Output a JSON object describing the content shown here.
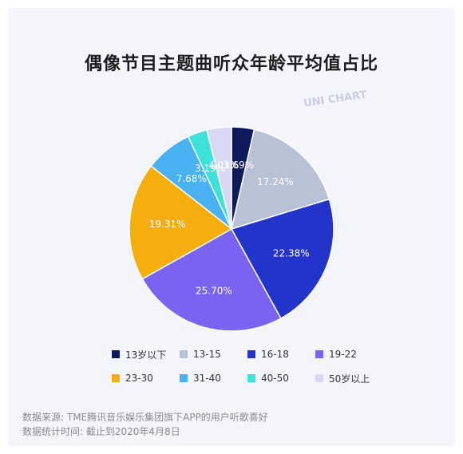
{
  "title": "偶像节目主题曲听众年龄平均值占比",
  "watermark": "UNI CHART",
  "chart_data": {
    "type": "pie",
    "title": "偶像节目主题曲听众年龄平均值占比",
    "slices": [
      {
        "label": "13岁以下",
        "value": 3.69,
        "display": "3.69%",
        "color": "#0d1a5c"
      },
      {
        "label": "13-15",
        "value": 17.24,
        "display": "17.24%",
        "color": "#b9c1d4"
      },
      {
        "label": "16-18",
        "value": 22.38,
        "display": "22.38%",
        "color": "#2234c9"
      },
      {
        "label": "19-22",
        "value": 25.7,
        "display": "25.70%",
        "color": "#7a63f0"
      },
      {
        "label": "23-30",
        "value": 19.31,
        "display": "19.31%",
        "color": "#f5ae0d"
      },
      {
        "label": "31-40",
        "value": 7.68,
        "display": "7.68%",
        "color": "#4ab2f3"
      },
      {
        "label": "40-50",
        "value": 3.19,
        "display": "3.19%",
        "color": "#3ee0da"
      },
      {
        "label": "50岁以上",
        "value": 4.01,
        "display": "4.01%",
        "color": "#d8d8f5"
      }
    ],
    "legend_position": "bottom"
  },
  "source": {
    "line1": "数据来源: TME腾讯音乐娱乐集团旗下APP的用户听歌喜好",
    "line2": "数据统计时间: 截止到2020年4月8日"
  }
}
